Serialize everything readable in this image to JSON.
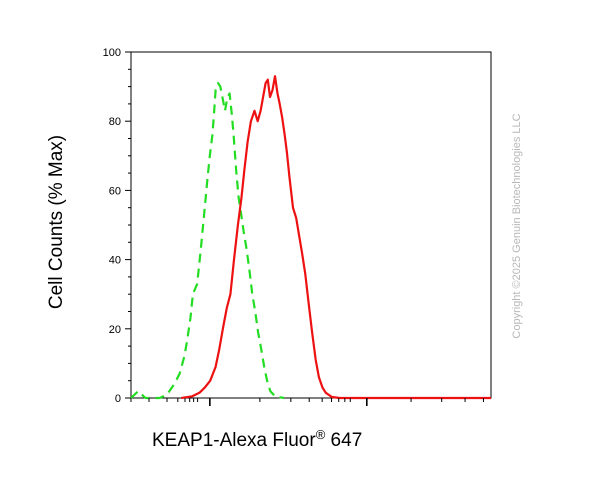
{
  "chart_data": {
    "type": "line",
    "ylabel": "Cell Counts (% Max)",
    "xlabel": {
      "prefix": "KEAP1-Alexa Fluor",
      "superscript": "®",
      "suffix": " 647"
    },
    "ylim": [
      0,
      100
    ],
    "yticks": [
      0,
      20,
      40,
      60,
      80,
      100
    ],
    "x_scale": "log",
    "xlim": [
      0,
      100
    ],
    "x_ticks": [
      {
        "x": 0,
        "major": false
      },
      {
        "x": 5,
        "major": false
      },
      {
        "x": 10,
        "major": false
      },
      {
        "x": 13,
        "major": false
      },
      {
        "x": 15,
        "major": false
      },
      {
        "x": 16.3,
        "major": false
      },
      {
        "x": 17.4,
        "major": false
      },
      {
        "x": 18.5,
        "major": false
      },
      {
        "x": 21.9,
        "major": true
      },
      {
        "x": 35.8,
        "major": false
      },
      {
        "x": 44.4,
        "major": false
      },
      {
        "x": 49.5,
        "major": false
      },
      {
        "x": 53.1,
        "major": false
      },
      {
        "x": 55.7,
        "major": false
      },
      {
        "x": 57.7,
        "major": false
      },
      {
        "x": 59.4,
        "major": false
      },
      {
        "x": 60.9,
        "major": false
      },
      {
        "x": 65.5,
        "major": true
      },
      {
        "x": 77.8,
        "major": false
      },
      {
        "x": 86.3,
        "major": false
      },
      {
        "x": 92.8,
        "major": false
      },
      {
        "x": 97.9,
        "major": false
      }
    ],
    "series": [
      {
        "style": "dashed",
        "color": "#22dd22",
        "points": [
          [
            0,
            0
          ],
          [
            2,
            2
          ],
          [
            4,
            0
          ],
          [
            8,
            0
          ],
          [
            10,
            1
          ],
          [
            12,
            4
          ],
          [
            13.5,
            7
          ],
          [
            14.8,
            12
          ],
          [
            15.5,
            16
          ],
          [
            16.5,
            23
          ],
          [
            17.2,
            30
          ],
          [
            18.4,
            33
          ],
          [
            19.4,
            43
          ],
          [
            20.3,
            53
          ],
          [
            21.1,
            62
          ],
          [
            21.9,
            70
          ],
          [
            22.6,
            76
          ],
          [
            23.1,
            83
          ],
          [
            23.5,
            89
          ],
          [
            24.2,
            91
          ],
          [
            24.8,
            90
          ],
          [
            25.4,
            87
          ],
          [
            26.1,
            83
          ],
          [
            26.8,
            87
          ],
          [
            27.4,
            88
          ],
          [
            28.0,
            82
          ],
          [
            28.5,
            76
          ],
          [
            29.2,
            66
          ],
          [
            29.9,
            58
          ],
          [
            30.6,
            53
          ],
          [
            31.3,
            48
          ],
          [
            32.1,
            43
          ],
          [
            32.9,
            37
          ],
          [
            33.7,
            30
          ],
          [
            34.5,
            25
          ],
          [
            35.3,
            19
          ],
          [
            36.2,
            14
          ],
          [
            37.0,
            9
          ],
          [
            37.8,
            5
          ],
          [
            38.7,
            2
          ],
          [
            40.0,
            0.5
          ],
          [
            42.5,
            0
          ]
        ]
      },
      {
        "style": "solid",
        "color": "#ee1111",
        "points": [
          [
            14,
            0
          ],
          [
            17,
            0.5
          ],
          [
            19,
            1.5
          ],
          [
            20.5,
            3
          ],
          [
            22,
            5
          ],
          [
            23.5,
            9
          ],
          [
            24.5,
            14
          ],
          [
            25.7,
            21
          ],
          [
            26.6,
            26
          ],
          [
            27.6,
            30
          ],
          [
            28.6,
            40
          ],
          [
            29.7,
            50
          ],
          [
            30.7,
            58
          ],
          [
            31.5,
            66
          ],
          [
            32.4,
            74
          ],
          [
            33.3,
            80
          ],
          [
            34.3,
            83
          ],
          [
            35.2,
            80
          ],
          [
            36.0,
            83
          ],
          [
            36.7,
            87
          ],
          [
            37.4,
            91
          ],
          [
            38.0,
            92
          ],
          [
            38.6,
            87
          ],
          [
            39.3,
            89
          ],
          [
            40.0,
            93
          ],
          [
            40.7,
            88
          ],
          [
            41.3,
            85
          ],
          [
            42.0,
            81
          ],
          [
            42.7,
            76
          ],
          [
            43.3,
            71
          ],
          [
            44.0,
            64
          ],
          [
            45.0,
            55
          ],
          [
            45.9,
            52
          ],
          [
            46.7,
            47
          ],
          [
            47.5,
            42
          ],
          [
            48.4,
            36
          ],
          [
            49.4,
            27
          ],
          [
            50.3,
            19
          ],
          [
            51.3,
            11
          ],
          [
            52.2,
            6
          ],
          [
            53.2,
            3
          ],
          [
            54.1,
            1.5
          ],
          [
            55.8,
            0.3
          ],
          [
            58,
            0
          ],
          [
            100,
            0
          ]
        ]
      }
    ]
  },
  "watermark": "Copyright ©2025 Genuin Biotechnologies LLC"
}
